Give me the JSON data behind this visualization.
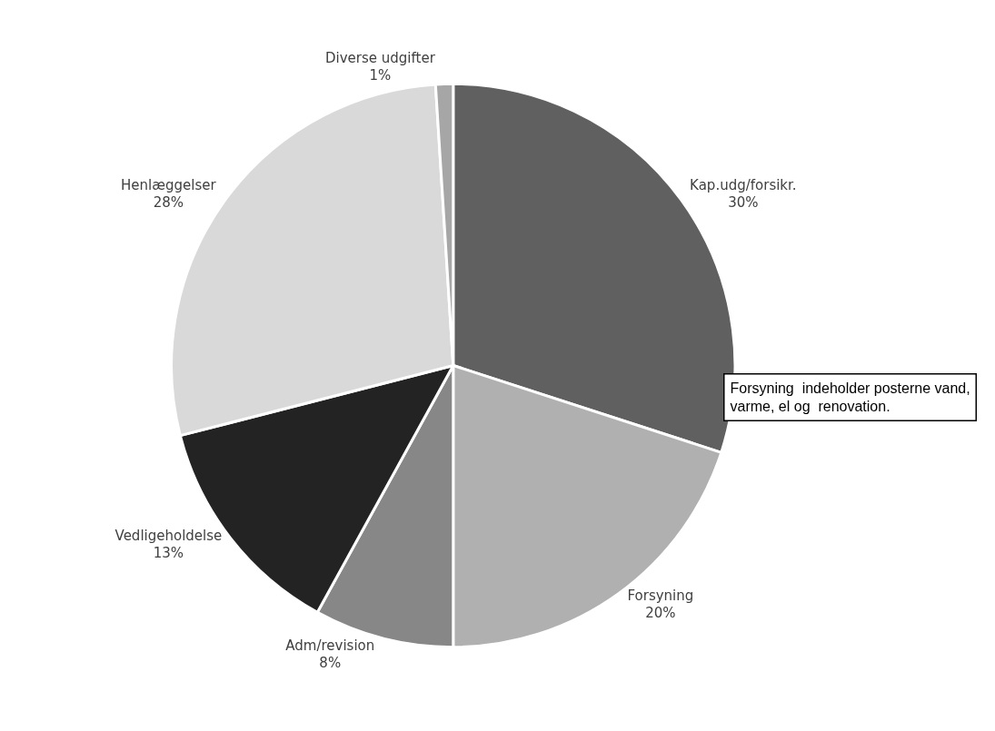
{
  "chart_data": {
    "type": "pie",
    "categories": [
      "Kap.udg/forsikr.",
      "Forsyning",
      "Adm/revision",
      "Vedligeholdelse",
      "Henlæggelser",
      "Diverse udgifter"
    ],
    "values": [
      30,
      20,
      8,
      13,
      28,
      1
    ],
    "value_labels": [
      "30%",
      "20%",
      "8%",
      "13%",
      "28%",
      "1%"
    ],
    "colors": [
      "#606060",
      "#b0b0b0",
      "#878787",
      "#232323",
      "#d9d9d9",
      "#a6a6a6"
    ],
    "annotations": [
      "Forsyning  indeholder posterne vand,\nvarme, el og  renovation."
    ],
    "legend": false
  }
}
